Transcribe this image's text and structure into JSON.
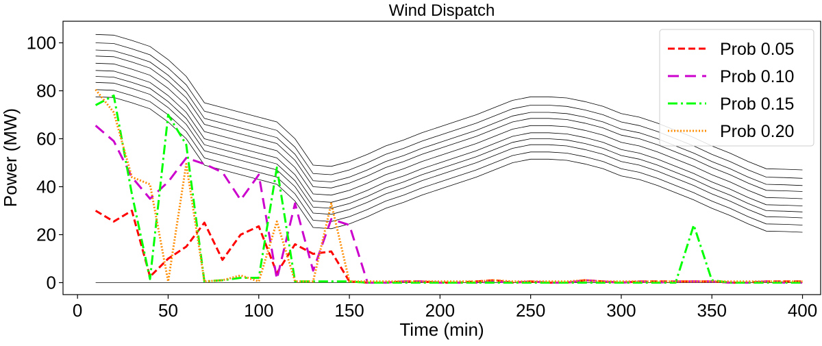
{
  "chart_data": {
    "type": "line",
    "title": "Wind Dispatch",
    "xlabel": "Time (min)",
    "ylabel": "Power (MW)",
    "xlim": [
      -8,
      410
    ],
    "ylim": [
      -5,
      109
    ],
    "xticks": [
      0,
      50,
      100,
      150,
      200,
      250,
      300,
      350,
      400
    ],
    "yticks": [
      0,
      20,
      40,
      60,
      80,
      100
    ],
    "grid": false,
    "legend_position": "top-right",
    "x": [
      10,
      20,
      30,
      40,
      50,
      60,
      70,
      80,
      90,
      100,
      110,
      120,
      130,
      140,
      150,
      160,
      170,
      180,
      190,
      200,
      210,
      220,
      230,
      240,
      250,
      260,
      270,
      280,
      290,
      300,
      310,
      320,
      330,
      340,
      350,
      360,
      370,
      380,
      390,
      400
    ],
    "envelope": {
      "color": "#000000",
      "base": [
        77.5,
        77.2,
        75.0,
        72.5,
        67.0,
        60.0,
        49.0,
        47.0,
        45.0,
        43.0,
        41.0,
        34.0,
        23.0,
        22.5,
        24.5,
        27.5,
        31.0,
        33.5,
        36.5,
        39.0,
        41.5,
        44.0,
        47.0,
        50.0,
        51.5,
        51.5,
        51.0,
        49.5,
        47.5,
        44.5,
        43.0,
        40.5,
        37.5,
        34.5,
        31.0,
        28.0,
        24.5,
        21.5,
        21.3,
        21.0
      ],
      "offsets": [
        0,
        3.0,
        6.0,
        8.5,
        11.0,
        14.0,
        17.0,
        19.5,
        22.5,
        26.0
      ],
      "zero_line": true
    },
    "series": [
      {
        "name": "Prob 0.05",
        "color": "#ff0000",
        "style": "dashed",
        "values": [
          30.0,
          25.5,
          30.0,
          2.5,
          10.0,
          15.0,
          25.0,
          9.5,
          20.0,
          23.5,
          4.0,
          16.0,
          12.0,
          13.0,
          0.5,
          0,
          0,
          0.5,
          0.5,
          0,
          0,
          0.5,
          1.0,
          0,
          0.5,
          0,
          0,
          1.0,
          0.5,
          0,
          0.5,
          0.5,
          0.5,
          0.5,
          0.5,
          0,
          0,
          0.5,
          0.5,
          0.5
        ]
      },
      {
        "name": "Prob 0.10",
        "color": "#cc00cc",
        "style": "dashed-long",
        "values": [
          65.5,
          59.0,
          44.0,
          35.0,
          42.0,
          52.0,
          49.5,
          46.0,
          34.5,
          45.0,
          1.5,
          33.0,
          5.0,
          26.5,
          24.0,
          0,
          0,
          0.5,
          0.5,
          0,
          0,
          0,
          0.5,
          0,
          0.5,
          0,
          0,
          1.0,
          0.5,
          0,
          0.5,
          0,
          0.5,
          0.5,
          0.5,
          0,
          0,
          0.5,
          0,
          0
        ]
      },
      {
        "name": "Prob 0.15",
        "color": "#00ff00",
        "style": "dashdot",
        "values": [
          74.0,
          78.0,
          37.0,
          1.5,
          70.0,
          57.5,
          0.5,
          1.0,
          2.0,
          2.0,
          48.0,
          0.5,
          0.5,
          0.5,
          0.5,
          0,
          0,
          0,
          0,
          0,
          0,
          0,
          0,
          0,
          0,
          0,
          0,
          0,
          0,
          0,
          0,
          0,
          0,
          24.0,
          1.0,
          0,
          0,
          0,
          0,
          0
        ]
      },
      {
        "name": "Prob 0.20",
        "color": "#ff8c00",
        "style": "dotted",
        "values": [
          80.5,
          71.0,
          44.0,
          41.0,
          0.5,
          49.5,
          0.5,
          1.0,
          3.0,
          0.5,
          25.5,
          0.5,
          0.5,
          33.0,
          0.5,
          0.5,
          0.5,
          0.5,
          0.5,
          0.5,
          0.5,
          0.5,
          1.0,
          0.5,
          0.5,
          0.5,
          0.5,
          1.0,
          0.5,
          0.5,
          0.5,
          0.5,
          0.5,
          0.5,
          0.5,
          0.5,
          0.5,
          0.5,
          0.5,
          0.5
        ]
      }
    ]
  }
}
